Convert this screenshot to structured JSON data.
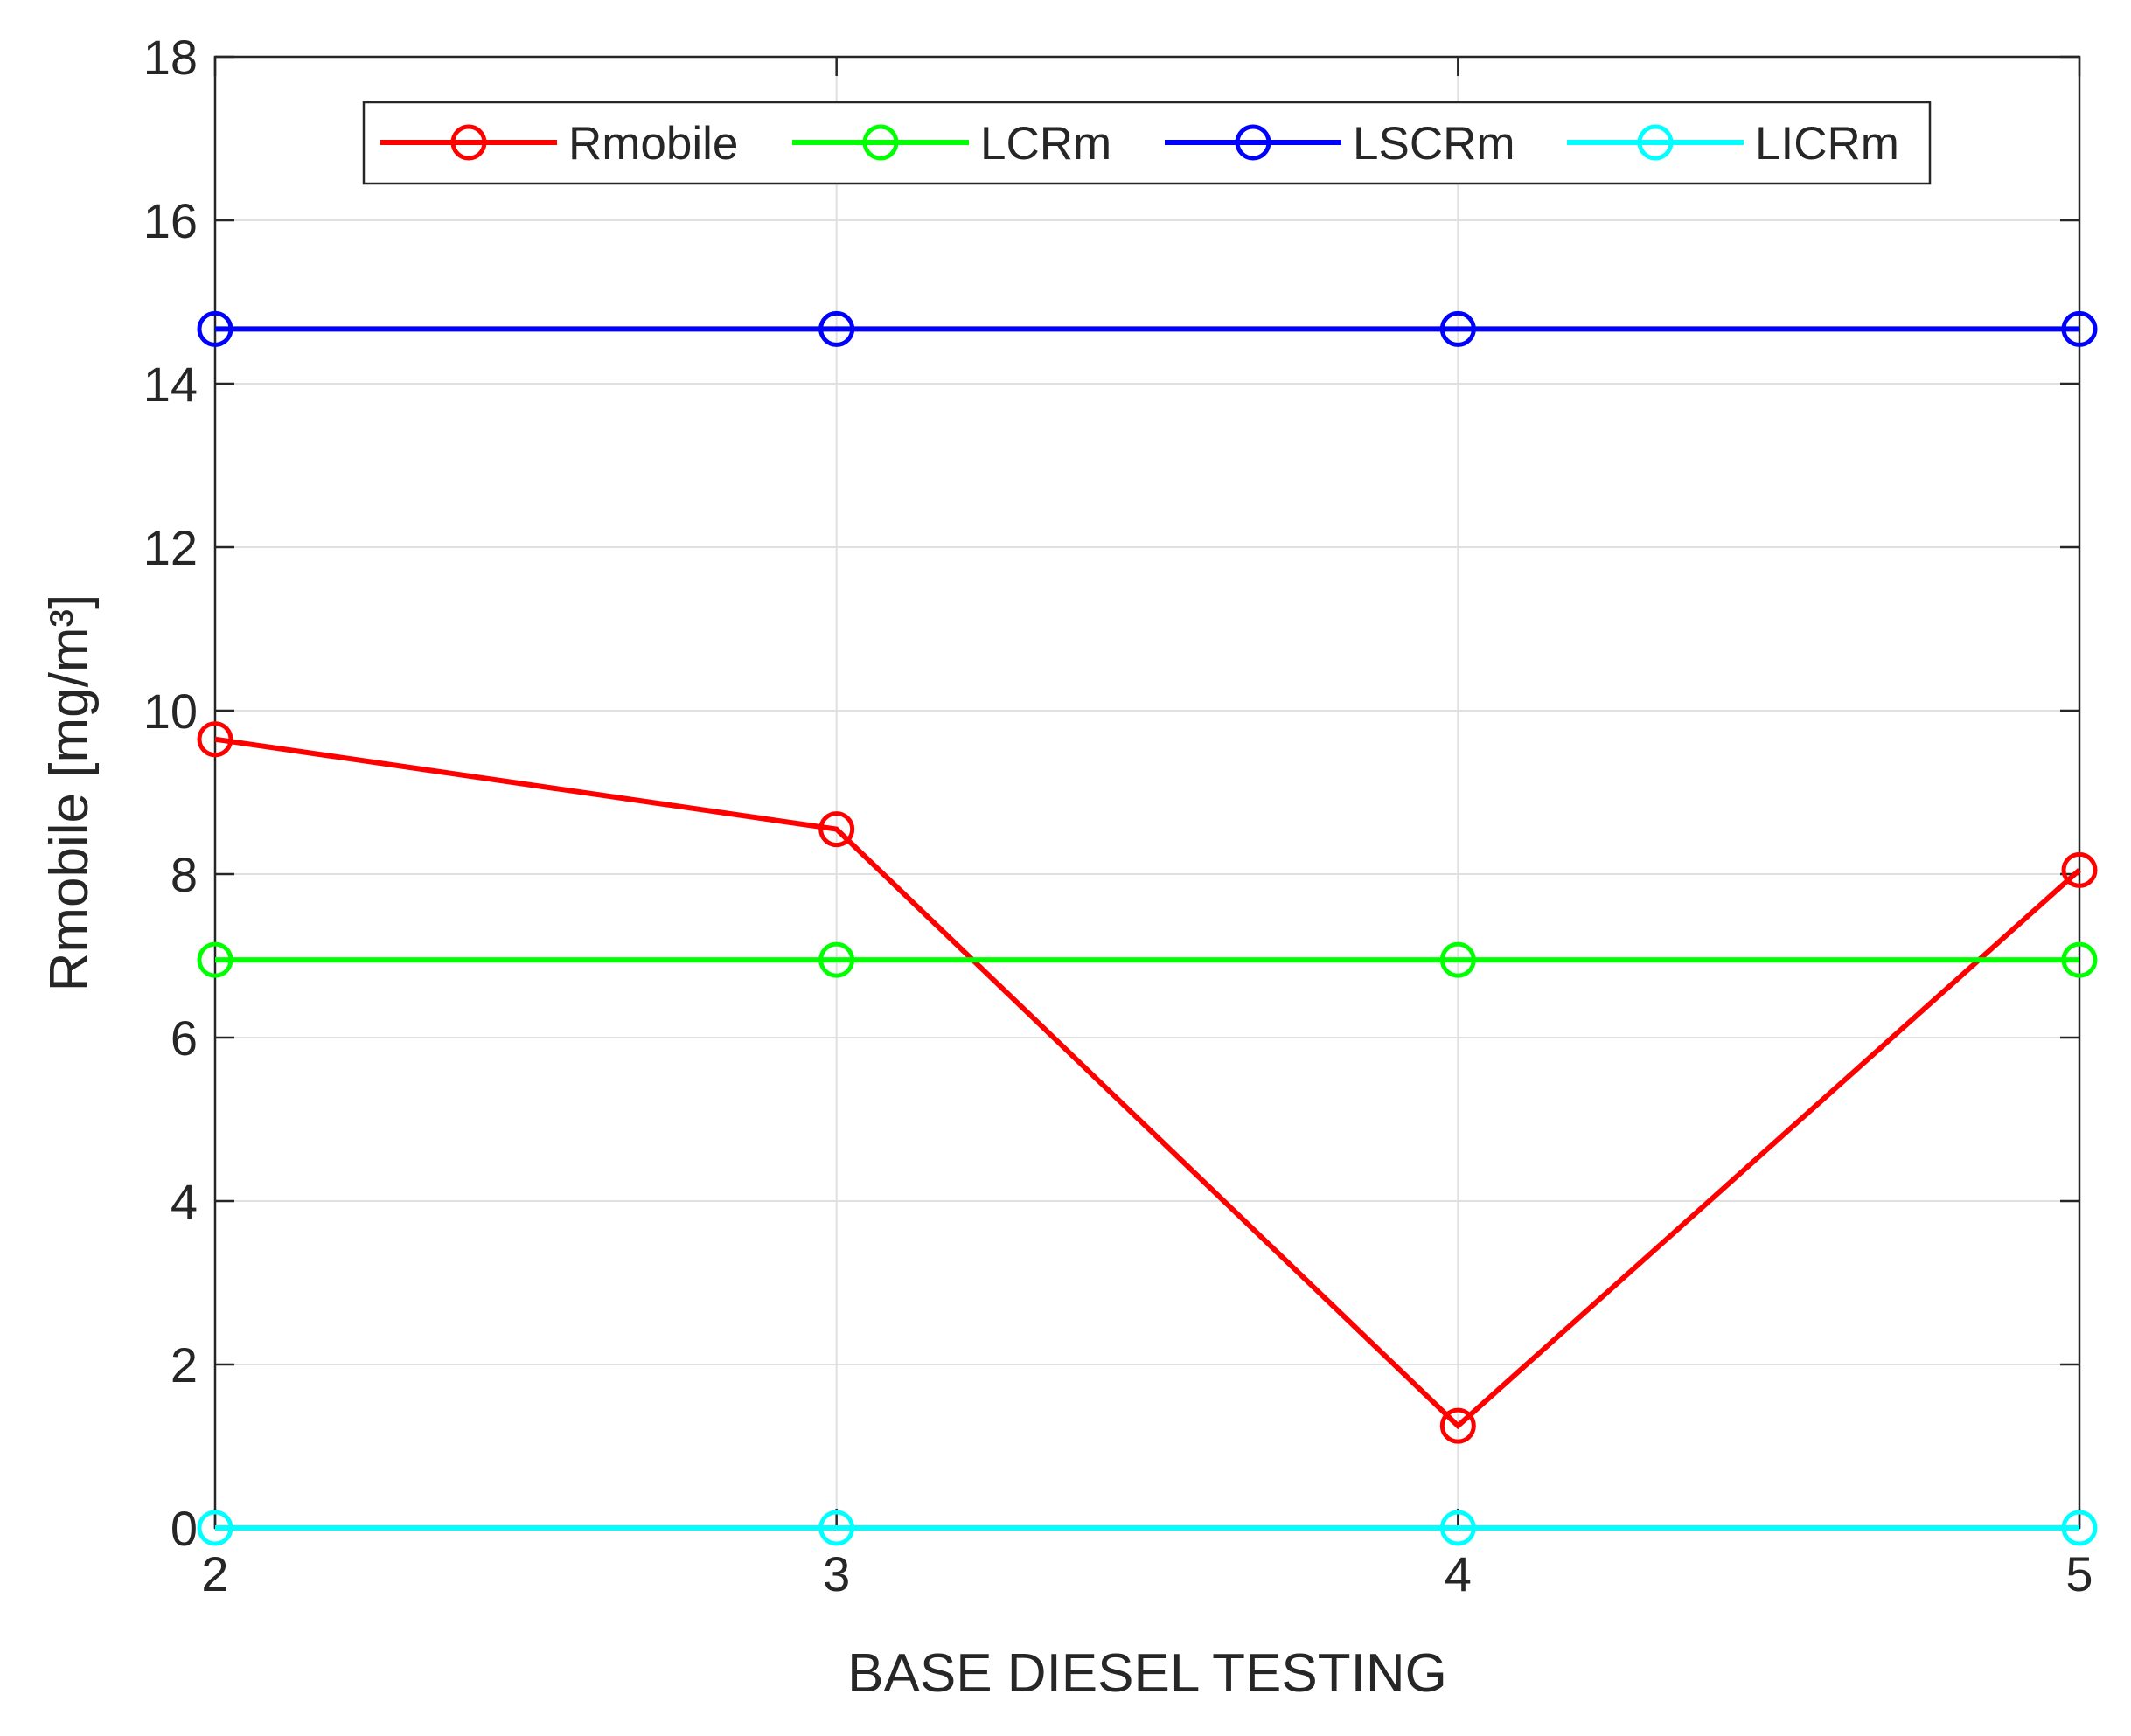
{
  "chart_data": {
    "type": "line",
    "x_label": "BASE DIESEL TESTING",
    "y_label": "Rmobile [mg/m³]",
    "x": [
      2,
      3,
      4,
      5
    ],
    "series": [
      {
        "name": "Rmobile",
        "color": "#ff0000",
        "values": [
          9.65,
          8.55,
          1.25,
          8.05
        ]
      },
      {
        "name": "LCRm",
        "color": "#00ff00",
        "values": [
          6.95,
          6.95,
          6.95,
          6.95
        ]
      },
      {
        "name": "LSCRm",
        "color": "#0000ff",
        "values": [
          14.67,
          14.67,
          14.67,
          14.67
        ]
      },
      {
        "name": "LICRm",
        "color": "#00ffff",
        "values": [
          0,
          0,
          0,
          0
        ]
      }
    ],
    "xlim": [
      2,
      5
    ],
    "xticks": [
      2,
      3,
      4,
      5
    ],
    "ylim": [
      0,
      18
    ],
    "yticks": [
      0,
      2,
      4,
      6,
      8,
      10,
      12,
      14,
      16,
      18
    ],
    "grid": true,
    "legend": "top"
  }
}
